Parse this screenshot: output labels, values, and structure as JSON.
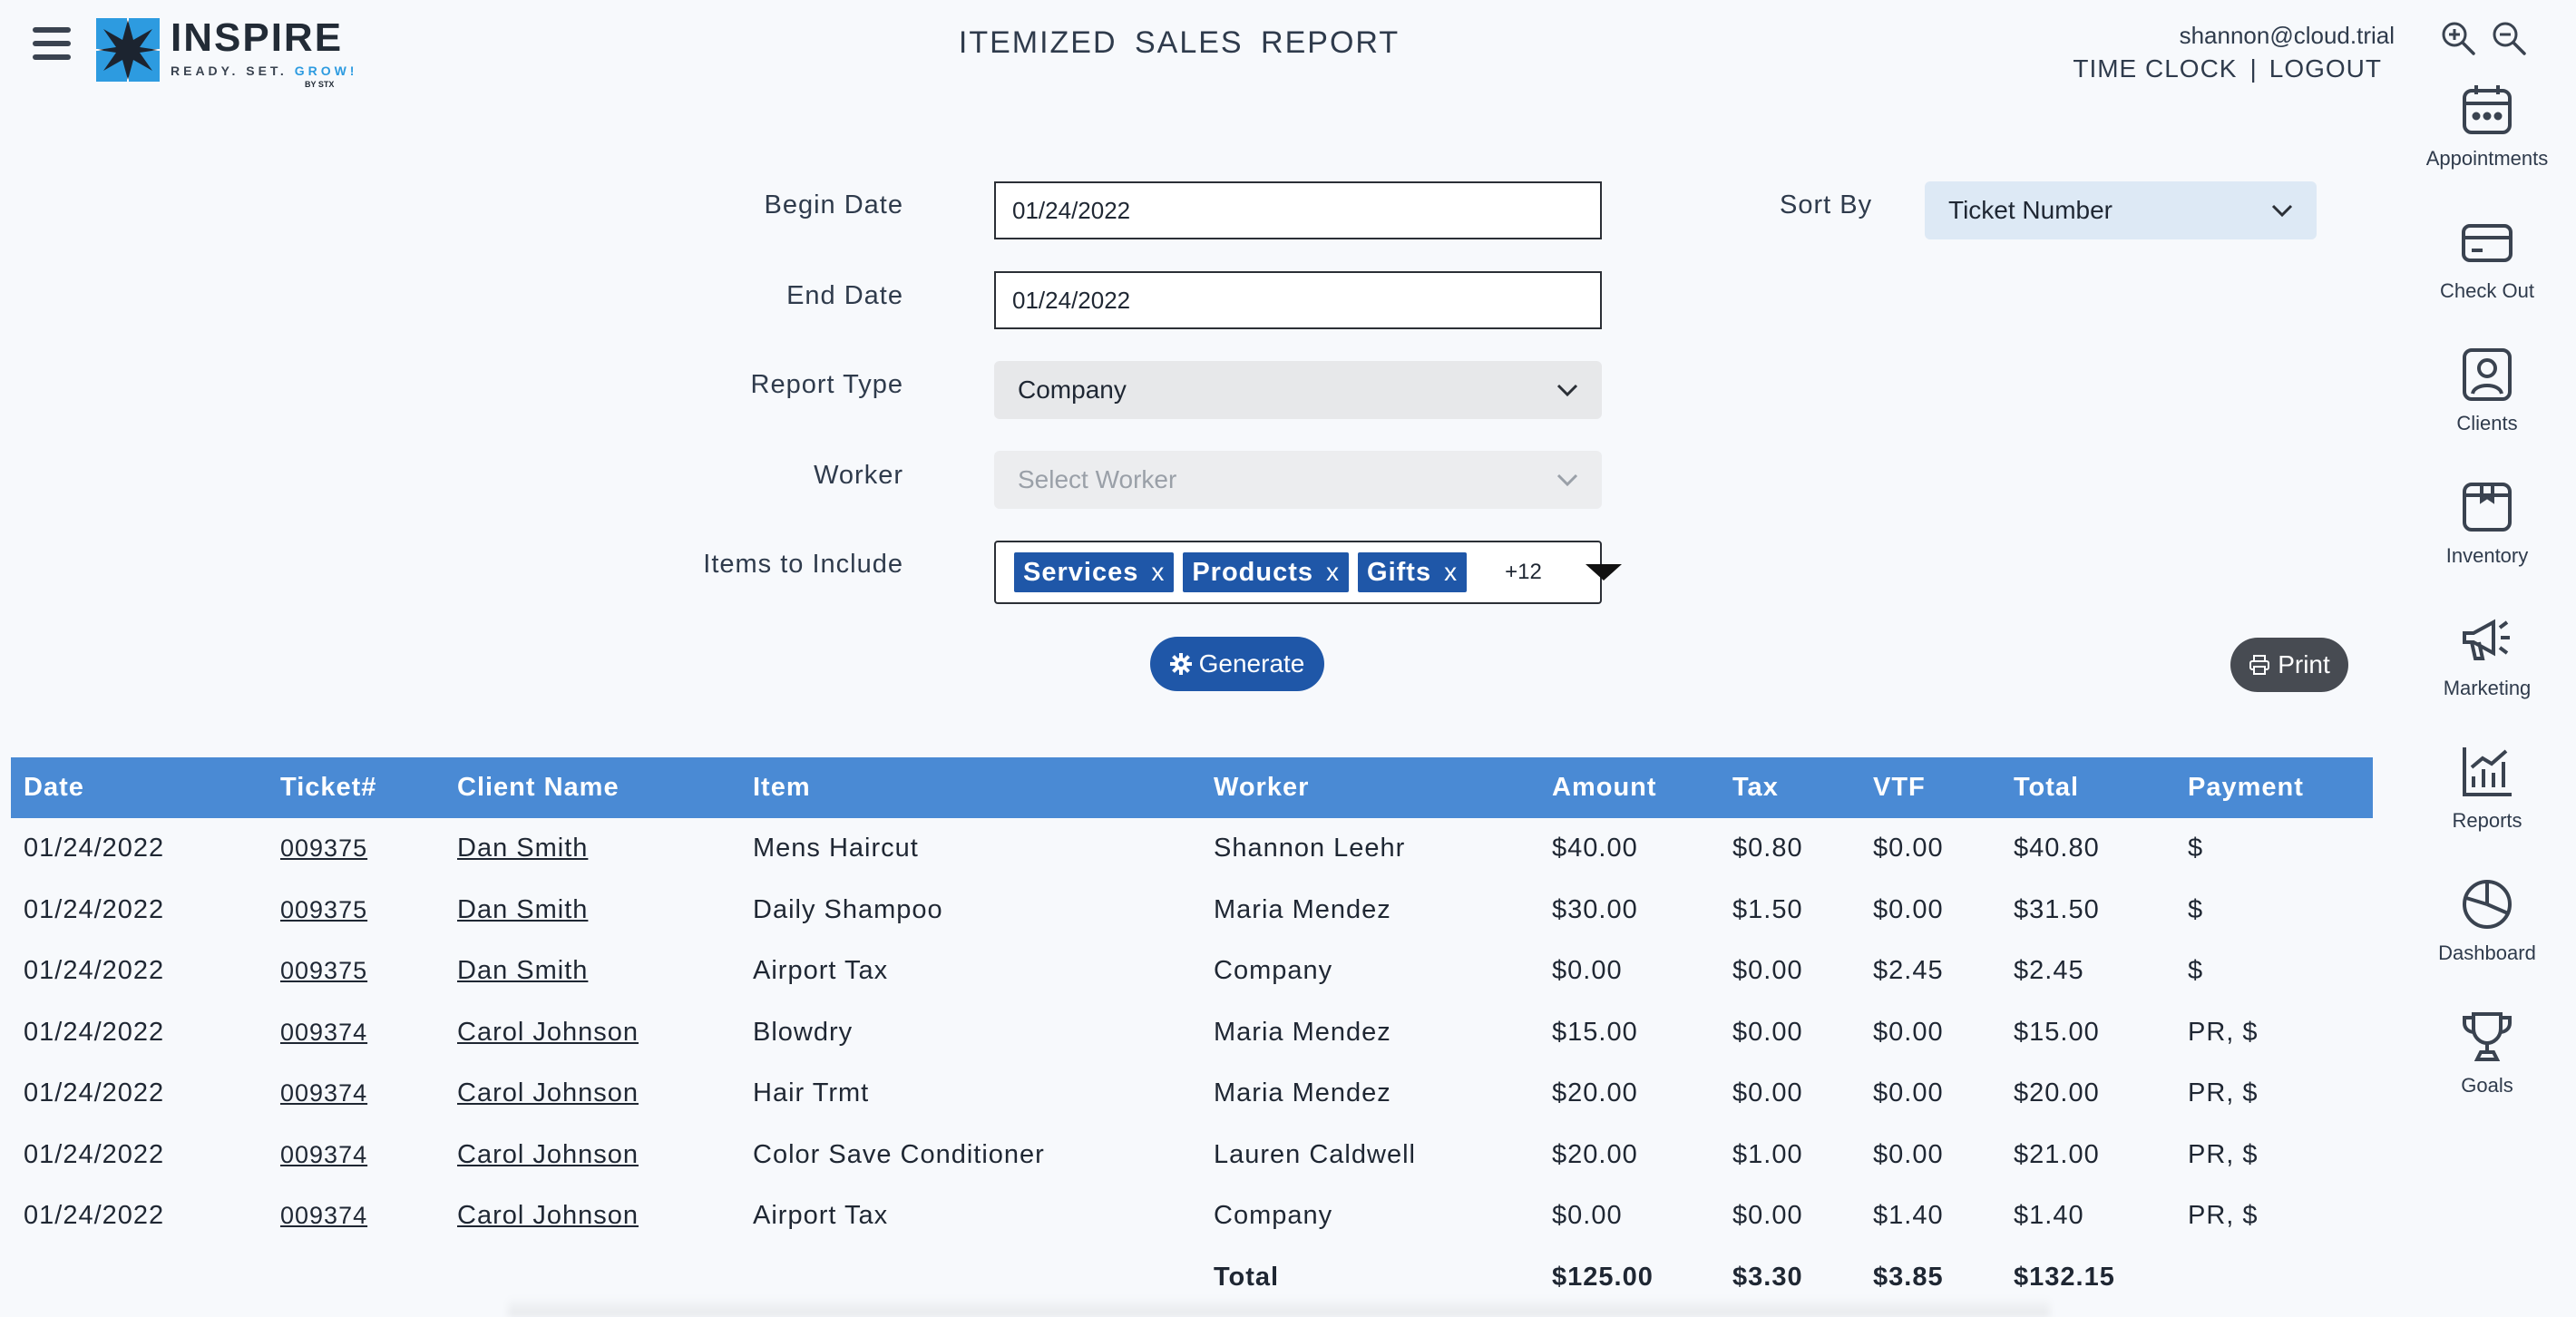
{
  "header": {
    "logo": {
      "name": "INSPIRE",
      "tagline": "READY. SET. ",
      "tagline_accent": "GROW!",
      "by": "BY STX"
    },
    "title": "ITEMIZED SALES REPORT",
    "user_email": "shannon@cloud.trial",
    "time_clock": "TIME CLOCK",
    "separator": "|",
    "logout": "LOGOUT"
  },
  "sidebar": {
    "items": [
      {
        "label": "Appointments",
        "icon": "calendar-icon"
      },
      {
        "label": "Check Out",
        "icon": "credit-card-icon"
      },
      {
        "label": "Clients",
        "icon": "person-icon"
      },
      {
        "label": "Inventory",
        "icon": "box-icon"
      },
      {
        "label": "Marketing",
        "icon": "megaphone-icon"
      },
      {
        "label": "Reports",
        "icon": "bar-chart-icon"
      },
      {
        "label": "Dashboard",
        "icon": "pie-chart-icon"
      },
      {
        "label": "Goals",
        "icon": "trophy-icon"
      }
    ]
  },
  "form": {
    "begin_date": {
      "label": "Begin Date",
      "value": "01/24/2022"
    },
    "end_date": {
      "label": "End Date",
      "value": "01/24/2022"
    },
    "report_type": {
      "label": "Report Type",
      "value": "Company"
    },
    "worker": {
      "label": "Worker",
      "placeholder": "Select Worker"
    },
    "items": {
      "label": "Items to Include",
      "tags": [
        "Services",
        "Products",
        "Gifts"
      ],
      "remove": "x",
      "more": "+12"
    },
    "sort_by": {
      "label": "Sort By",
      "value": "Ticket Number"
    },
    "generate": "Generate",
    "print": "Print"
  },
  "colors": {
    "primary": "#1f57a8",
    "table_header": "#4a8ad4",
    "print_button": "#474b52"
  },
  "table": {
    "columns": [
      "Date",
      "Ticket#",
      "Client Name",
      "Item",
      "Worker",
      "Amount",
      "Tax",
      "VTF",
      "Total",
      "Payment"
    ],
    "rows": [
      [
        "01/24/2022",
        "009375",
        "Dan Smith",
        "Mens Haircut",
        "Shannon Leehr",
        "$40.00",
        "$0.80",
        "$0.00",
        "$40.80",
        "$"
      ],
      [
        "01/24/2022",
        "009375",
        "Dan Smith",
        "Daily Shampoo",
        "Maria Mendez",
        "$30.00",
        "$1.50",
        "$0.00",
        "$31.50",
        "$"
      ],
      [
        "01/24/2022",
        "009375",
        "Dan Smith",
        "Airport Tax",
        "Company",
        "$0.00",
        "$0.00",
        "$2.45",
        "$2.45",
        "$"
      ],
      [
        "01/24/2022",
        "009374",
        "Carol Johnson",
        "Blowdry",
        "Maria Mendez",
        "$15.00",
        "$0.00",
        "$0.00",
        "$15.00",
        "PR, $"
      ],
      [
        "01/24/2022",
        "009374",
        "Carol Johnson",
        "Hair Trmt",
        "Maria Mendez",
        "$20.00",
        "$0.00",
        "$0.00",
        "$20.00",
        "PR, $"
      ],
      [
        "01/24/2022",
        "009374",
        "Carol Johnson",
        "Color Save Conditioner",
        "Lauren Caldwell",
        "$20.00",
        "$1.00",
        "$0.00",
        "$21.00",
        "PR, $"
      ],
      [
        "01/24/2022",
        "009374",
        "Carol Johnson",
        "Airport Tax",
        "Company",
        "$0.00",
        "$0.00",
        "$1.40",
        "$1.40",
        "PR, $"
      ]
    ],
    "total": {
      "label": "Total",
      "amount": "$125.00",
      "tax": "$3.30",
      "vtf": "$3.85",
      "total": "$132.15"
    }
  }
}
